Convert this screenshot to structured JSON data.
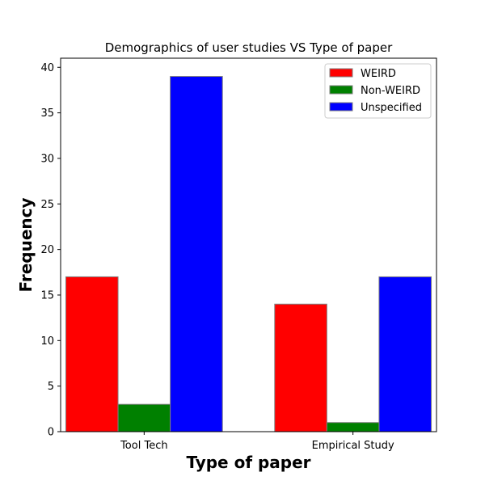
{
  "chart_data": {
    "type": "bar",
    "title": "Demographics of user studies VS Type of paper",
    "xlabel": "Type of paper",
    "ylabel": "Frequency",
    "categories": [
      "Tool Tech",
      "Empirical Study"
    ],
    "series": [
      {
        "name": "WEIRD",
        "values": [
          17,
          14
        ],
        "color": "#ff0000"
      },
      {
        "name": "Non-WEIRD",
        "values": [
          3,
          1
        ],
        "color": "#008000"
      },
      {
        "name": "Unspecified",
        "values": [
          39,
          17
        ],
        "color": "#0000ff"
      }
    ],
    "ylim": [
      0,
      41
    ],
    "yticks": [
      0,
      5,
      10,
      15,
      20,
      25,
      30,
      35,
      40
    ],
    "legend_position": "top-right",
    "grid": false
  }
}
